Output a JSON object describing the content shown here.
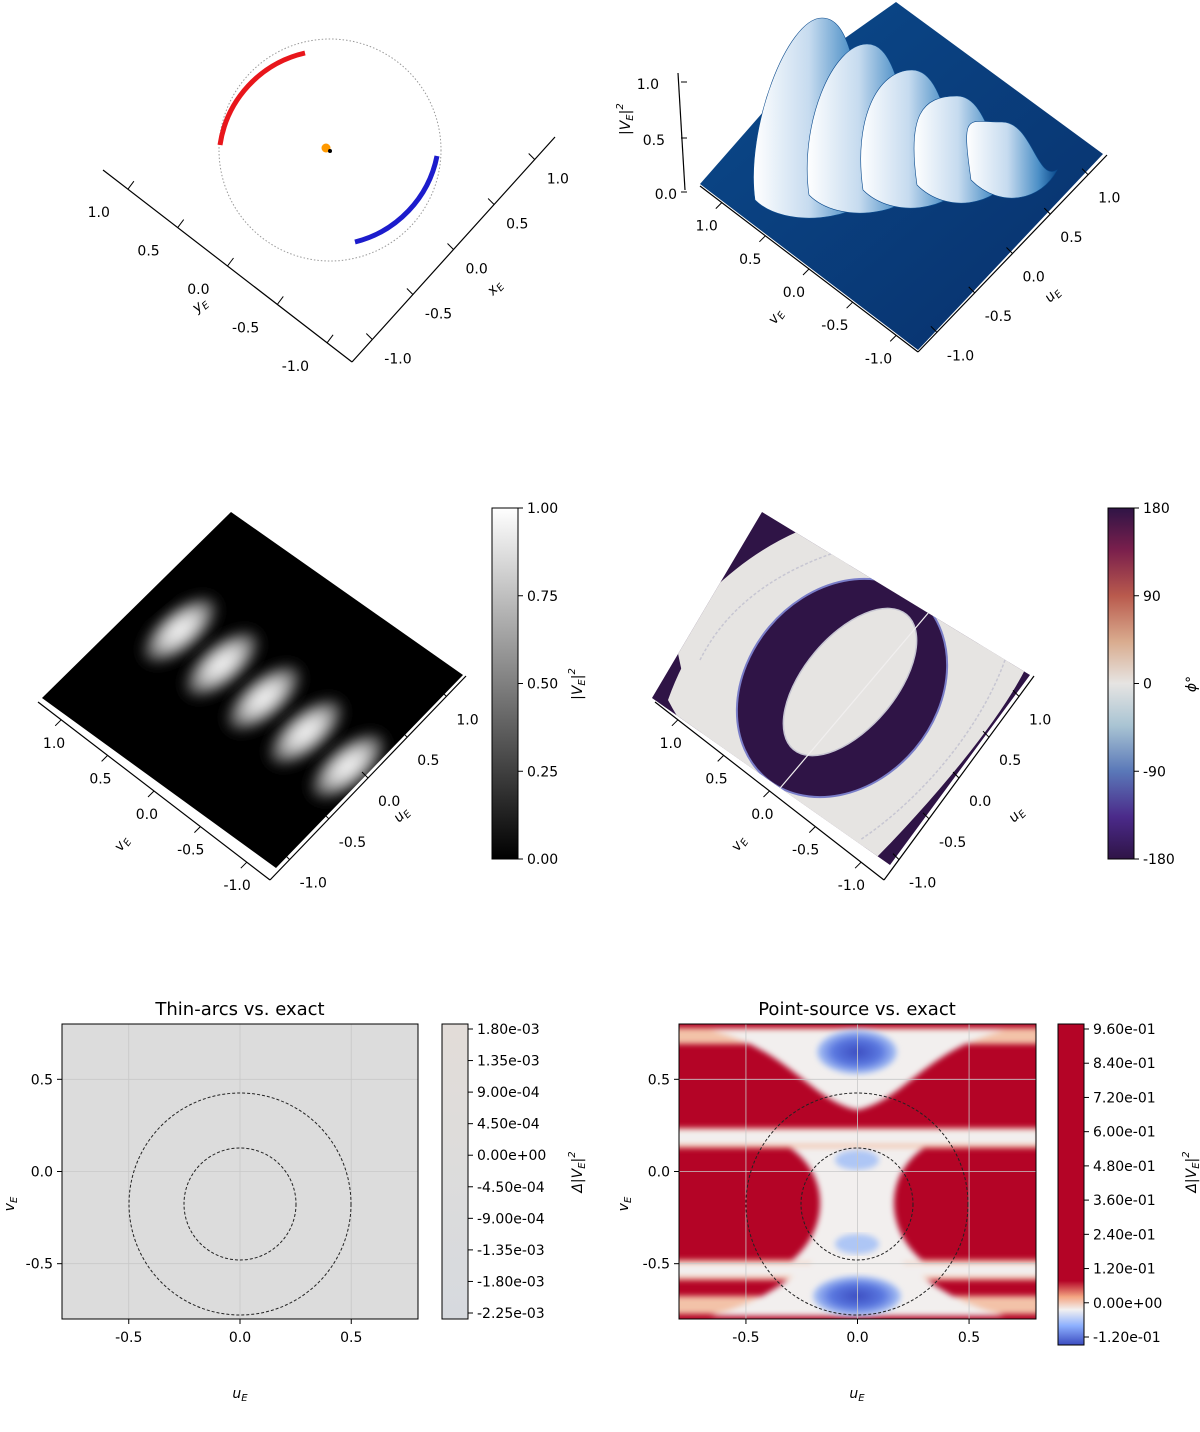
{
  "chart_data": [
    {
      "panel": "top-left",
      "type": "scatter",
      "xlabel": "x_E",
      "ylabel": "y_E",
      "xticks": [
        "1.0",
        "0.5",
        "0.0",
        "-0.5",
        "-1.0"
      ],
      "yticks": [
        "1.0",
        "0.5",
        "0.0",
        "-0.5",
        "-1.0"
      ],
      "series": [
        {
          "name": "",
          "kind": "dotted circle",
          "radius": 1.0,
          "color": "#999999"
        },
        {
          "name": "",
          "kind": "arc",
          "radius": 1.0,
          "color": "#e8161b"
        },
        {
          "name": "",
          "kind": "arc",
          "radius": 1.0,
          "color": "#1c1ccc"
        },
        {
          "name": "",
          "kind": "point",
          "x": 0.0,
          "y": 0.0,
          "color": "#ff9900"
        },
        {
          "name": "",
          "kind": "point",
          "x": 0.02,
          "y": -0.02,
          "color": "#000000"
        }
      ]
    },
    {
      "panel": "top-right",
      "type": "area",
      "zlabel": "|V_E|^2",
      "xlabel": "u_E",
      "ylabel": "v_E",
      "zticks": [
        "1.0",
        "0.5",
        "0.0"
      ],
      "xticks": [
        "1.0",
        "0.5",
        "0.0",
        "-0.5",
        "-1.0"
      ],
      "yticks": [
        "1.0",
        "0.5",
        "0.0",
        "-0.5",
        "-1.0"
      ],
      "zlim": [
        0,
        1.0
      ],
      "peaks": 5,
      "colormap": "Blues"
    },
    {
      "panel": "middle-left",
      "type": "heatmap",
      "xlabel": "u_E",
      "ylabel": "v_E",
      "xticks": [
        "1.0",
        "0.5",
        "0.0",
        "-0.5",
        "-1.0"
      ],
      "yticks": [
        "1.0",
        "0.5",
        "0.0",
        "-0.5",
        "-1.0"
      ],
      "colorbar": {
        "label": "|V_E|^2",
        "ticks": [
          "1.00",
          "0.75",
          "0.50",
          "0.25",
          "0.00"
        ],
        "range": [
          0,
          1.0
        ],
        "colormap": "gray"
      },
      "bright_fringes": 5
    },
    {
      "panel": "middle-right",
      "type": "heatmap",
      "xlabel": "u_E",
      "ylabel": "v_E",
      "xticks": [
        "1.0",
        "0.5",
        "0.0",
        "-0.5",
        "-1.0"
      ],
      "yticks": [
        "1.0",
        "0.5",
        "0.0",
        "-0.5",
        "-1.0"
      ],
      "colorbar": {
        "label": "ϕ°",
        "ticks": [
          "180",
          "90",
          "0",
          "-90",
          "-180"
        ],
        "range": [
          -180,
          180
        ],
        "colormap": "twilight_shifted"
      }
    },
    {
      "panel": "bottom-left",
      "type": "heatmap",
      "title": "Thin-arcs vs. exact",
      "xlabel": "u_E",
      "ylabel": "v_E",
      "xlim": [
        -0.8,
        0.8
      ],
      "ylim": [
        -0.8,
        0.8
      ],
      "xticks": [
        "-0.5",
        "0.0",
        "0.5"
      ],
      "yticks": [
        "0.5",
        "0.0",
        "-0.5"
      ],
      "grid": true,
      "circles_radius": [
        0.25,
        0.5
      ],
      "colorbar": {
        "label": "Δ|V_E|^2",
        "colormap": "coolwarm",
        "ticks": [
          "1.80e-03",
          "1.35e-03",
          "9.00e-04",
          "4.50e-04",
          "0.00e+00",
          "-4.50e-04",
          "-9.00e-04",
          "-1.35e-03",
          "-1.80e-03",
          "-2.25e-03"
        ]
      }
    },
    {
      "panel": "bottom-right",
      "type": "heatmap",
      "title": "Point-source vs. exact",
      "xlabel": "u_E",
      "ylabel": "v_E",
      "xlim": [
        -0.8,
        0.8
      ],
      "ylim": [
        -0.8,
        0.8
      ],
      "xticks": [
        "-0.5",
        "0.0",
        "0.5"
      ],
      "yticks": [
        "0.5",
        "0.0",
        "-0.5"
      ],
      "grid": true,
      "circles_radius": [
        0.25,
        0.5
      ],
      "colorbar": {
        "label": "Δ|V_E|^2",
        "colormap": "coolwarm",
        "ticks": [
          "9.60e-01",
          "8.40e-01",
          "7.20e-01",
          "6.00e-01",
          "4.80e-01",
          "3.60e-01",
          "2.40e-01",
          "1.20e-01",
          "0.00e+00",
          "-1.20e-01"
        ]
      }
    }
  ]
}
